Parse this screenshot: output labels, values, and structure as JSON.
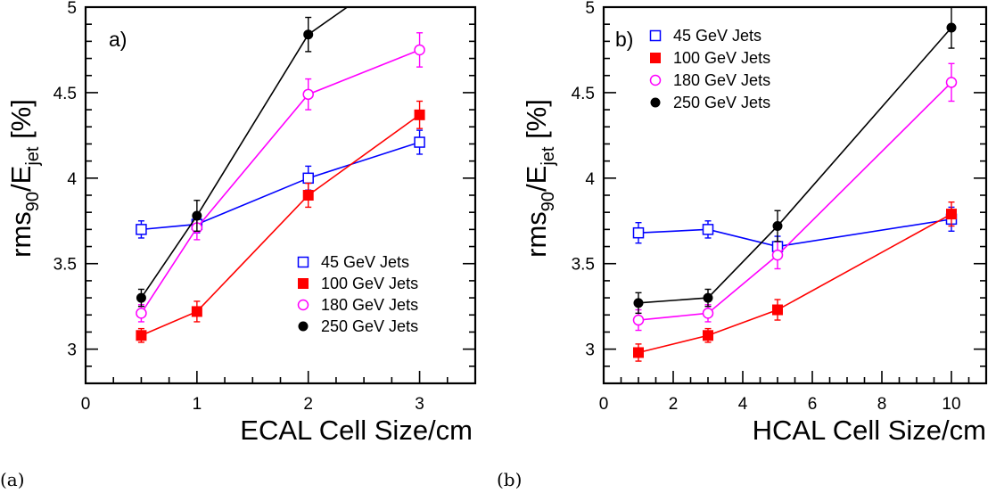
{
  "chart_data": [
    {
      "type": "line",
      "panel_label": "a)",
      "caption": "(a)",
      "xlabel": "ECAL Cell Size/cm",
      "ylabel": {
        "main": "rms",
        "sub1": "90",
        "mid": "/E",
        "sub2": "jet",
        "unit": " [%]"
      },
      "xlim": [
        0,
        3.5
      ],
      "ylim": [
        2.8,
        5
      ],
      "xticks": [
        0,
        1,
        2,
        3
      ],
      "yticks": [
        3,
        3.5,
        4,
        4.5,
        5
      ],
      "ytick_labels": [
        "3",
        "3.5",
        "4",
        "4.5",
        "5"
      ],
      "legend_position": "bottom-right",
      "series": [
        {
          "name": "45 GeV Jets",
          "color": "#0000ff",
          "marker": "open-square",
          "x": [
            0.5,
            1,
            2,
            3
          ],
          "y": [
            3.7,
            3.73,
            4.0,
            4.21
          ],
          "err": [
            0.05,
            0.05,
            0.07,
            0.07
          ]
        },
        {
          "name": "100 GeV Jets",
          "color": "#ff0000",
          "marker": "filled-square",
          "x": [
            0.5,
            1,
            2,
            3
          ],
          "y": [
            3.08,
            3.22,
            3.9,
            4.37
          ],
          "err": [
            0.04,
            0.06,
            0.07,
            0.08
          ]
        },
        {
          "name": "180 GeV Jets",
          "color": "#ff00ff",
          "marker": "open-circle",
          "x": [
            0.5,
            1,
            2,
            3
          ],
          "y": [
            3.21,
            3.71,
            4.49,
            4.75
          ],
          "err": [
            0.05,
            0.07,
            0.09,
            0.1
          ]
        },
        {
          "name": "250 GeV Jets",
          "color": "#000000",
          "marker": "filled-circle",
          "x": [
            0.5,
            1,
            2,
            2.35
          ],
          "y": [
            3.3,
            3.78,
            4.84,
            5.0
          ],
          "err": [
            0.05,
            0.09,
            0.1,
            0
          ]
        }
      ]
    },
    {
      "type": "line",
      "panel_label": "b)",
      "caption": "(b)",
      "xlabel": "HCAL Cell Size/cm",
      "ylabel": {
        "main": "rms",
        "sub1": "90",
        "mid": "/E",
        "sub2": "jet",
        "unit": " [%]"
      },
      "xlim": [
        0,
        11
      ],
      "ylim": [
        2.8,
        5
      ],
      "xticks": [
        0,
        2,
        4,
        6,
        8,
        10
      ],
      "yticks": [
        3,
        3.5,
        4,
        4.5,
        5
      ],
      "ytick_labels": [
        "3",
        "3.5",
        "4",
        "4.5",
        "5"
      ],
      "legend_position": "top-left",
      "series": [
        {
          "name": "45 GeV Jets",
          "color": "#0000ff",
          "marker": "open-square",
          "x": [
            1,
            3,
            5,
            10
          ],
          "y": [
            3.68,
            3.7,
            3.6,
            3.76
          ],
          "err": [
            0.06,
            0.05,
            0.06,
            0.07
          ]
        },
        {
          "name": "100 GeV Jets",
          "color": "#ff0000",
          "marker": "filled-square",
          "x": [
            1,
            3,
            5,
            10
          ],
          "y": [
            2.98,
            3.08,
            3.23,
            3.79
          ],
          "err": [
            0.05,
            0.04,
            0.06,
            0.07
          ]
        },
        {
          "name": "180 GeV Jets",
          "color": "#ff00ff",
          "marker": "open-circle",
          "x": [
            1,
            3,
            5,
            10
          ],
          "y": [
            3.17,
            3.21,
            3.55,
            4.56
          ],
          "err": [
            0.06,
            0.05,
            0.08,
            0.11
          ]
        },
        {
          "name": "250 GeV Jets",
          "color": "#000000",
          "marker": "filled-circle",
          "x": [
            1,
            3,
            5,
            10
          ],
          "y": [
            3.27,
            3.3,
            3.72,
            4.88
          ],
          "err": [
            0.06,
            0.05,
            0.09,
            0.12
          ]
        }
      ]
    }
  ]
}
